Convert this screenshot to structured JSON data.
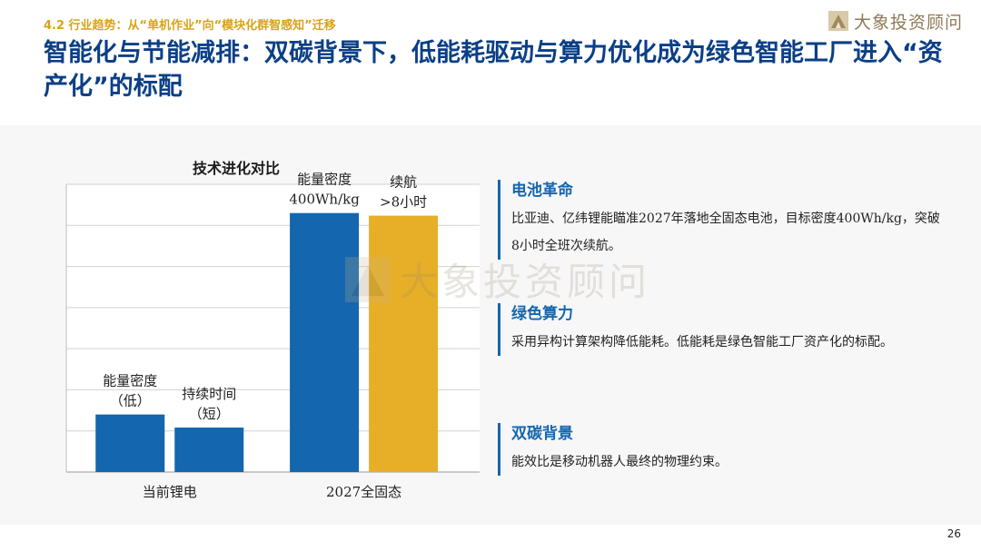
{
  "section": "4.2 行业趋势：从“单机作业”向“模块化群智感知”迁移",
  "logo": {
    "name": "大象投资顾问"
  },
  "title": "智能化与节能减排：双碳背景下，低能耗驱动与算力优化成为绿色智能工厂进入“资产化”的标配",
  "chart_data": {
    "type": "bar",
    "title": "技术进化对比",
    "categories": [
      "当前锂电",
      "2027全固态"
    ],
    "series": [
      {
        "values": [
          22,
          99
        ]
      },
      {
        "values": [
          17,
          98
        ]
      }
    ],
    "bar_labels": [
      [
        "能量密度",
        "（低）"
      ],
      [
        "持续时间",
        "（短）"
      ],
      [
        "能量密度",
        "400Wh/kg"
      ],
      [
        "续航",
        ">8小时"
      ]
    ],
    "ylim": [
      0,
      110
    ],
    "grid": true,
    "colors": [
      "#1466ae",
      "#1466ae",
      "#1466ae",
      "#e6af27"
    ]
  },
  "watermark": "大象投资顾问",
  "cards": [
    {
      "heading": "电池革命",
      "body": "比亚迪、亿纬锂能瞄准2027年落地全固态电池，目标密度400Wh/kg，突破8小时全班次续航。"
    },
    {
      "heading": "绿色算力",
      "body": "采用异构计算架构降低能耗。低能耗是绿色智能工厂资产化的标配。"
    },
    {
      "heading": "双碳背景",
      "body": "能效比是移动机器人最终的物理约束。"
    }
  ],
  "page_number": "26"
}
